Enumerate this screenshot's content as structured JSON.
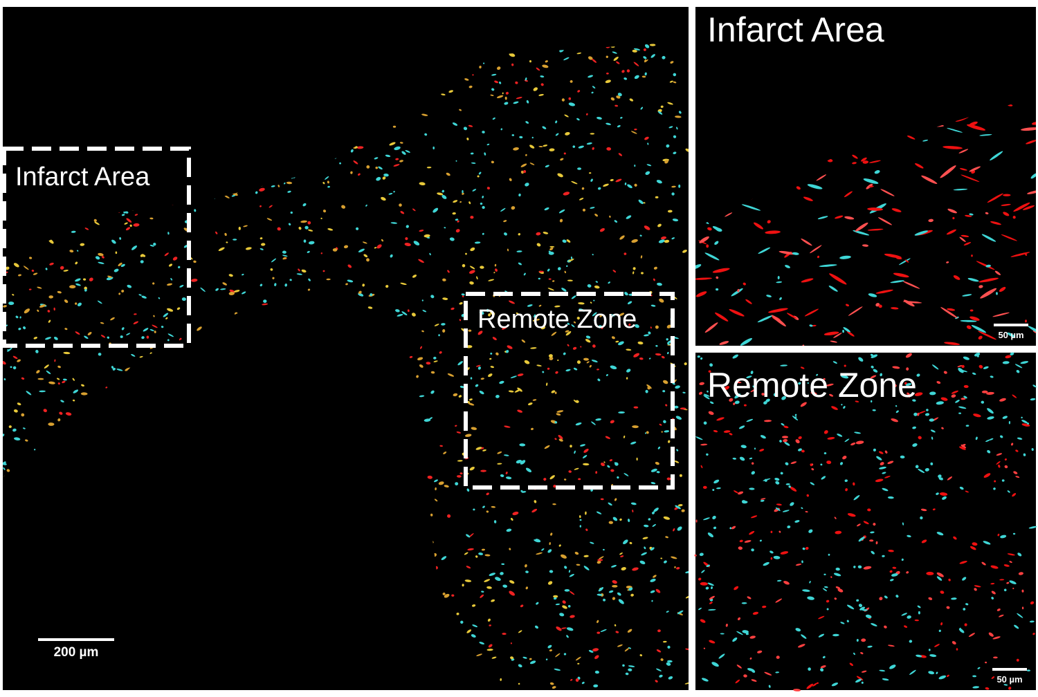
{
  "main_panel": {
    "regions": [
      {
        "label": "Infarct Area"
      },
      {
        "label": "Remote Zone"
      }
    ],
    "scale_bar": "200 µm"
  },
  "insets": [
    {
      "title": "Infarct Area",
      "scale_bar": "50 µm"
    },
    {
      "title": "Remote Zone",
      "scale_bar": "50 µm"
    }
  ]
}
